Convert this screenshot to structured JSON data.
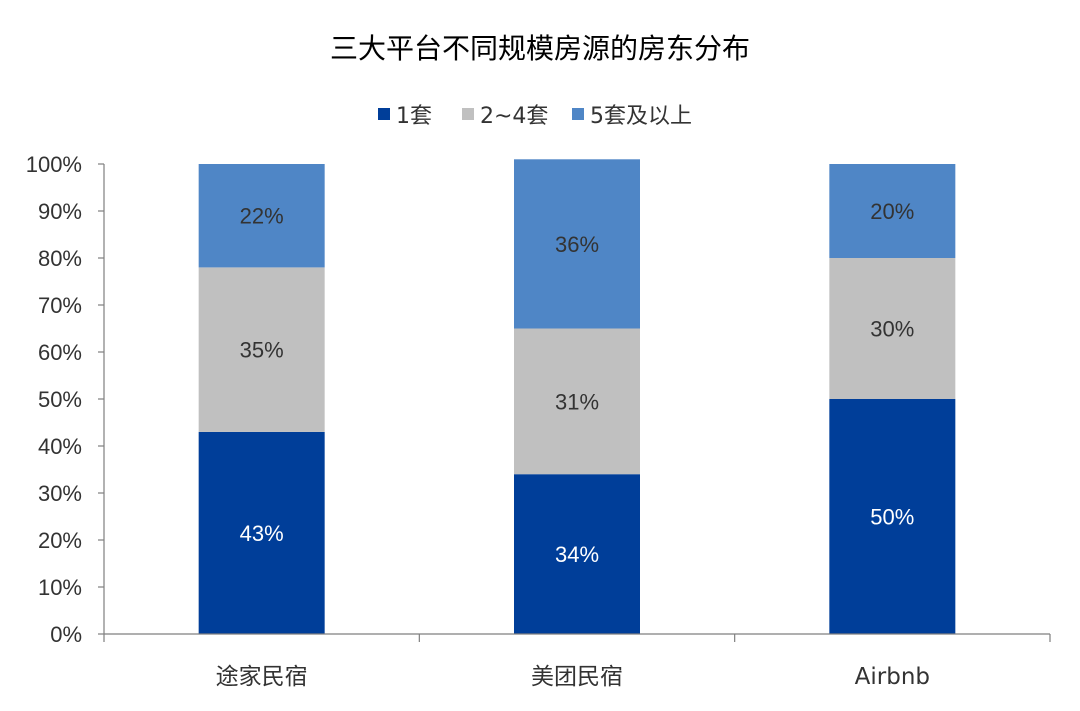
{
  "chart_data": {
    "type": "bar",
    "stacked": true,
    "title": "三大平台不同规模房源的房东分布",
    "categories": [
      "途家民宿",
      "美团民宿",
      "Airbnb"
    ],
    "series": [
      {
        "name": "1套",
        "values": [
          43,
          34,
          50
        ],
        "color": "#003E99",
        "label_color": "#ffffff"
      },
      {
        "name": "2~4套",
        "values": [
          35,
          31,
          30
        ],
        "color": "#C0C0C0",
        "label_color": "#333333"
      },
      {
        "name": "5套及以上",
        "values": [
          22,
          36,
          20
        ],
        "color": "#4F86C6",
        "label_color": "#333333"
      }
    ],
    "data_labels": [
      [
        "43%",
        "34%",
        "50%"
      ],
      [
        "35%",
        "31%",
        "30%"
      ],
      [
        "22%",
        "36%",
        "20%"
      ]
    ],
    "ylim": [
      0,
      100
    ],
    "yticks": [
      "0%",
      "10%",
      "20%",
      "30%",
      "40%",
      "50%",
      "60%",
      "70%",
      "80%",
      "90%",
      "100%"
    ],
    "xlabel": "",
    "ylabel": "",
    "legend_position": "top",
    "grid": false
  }
}
